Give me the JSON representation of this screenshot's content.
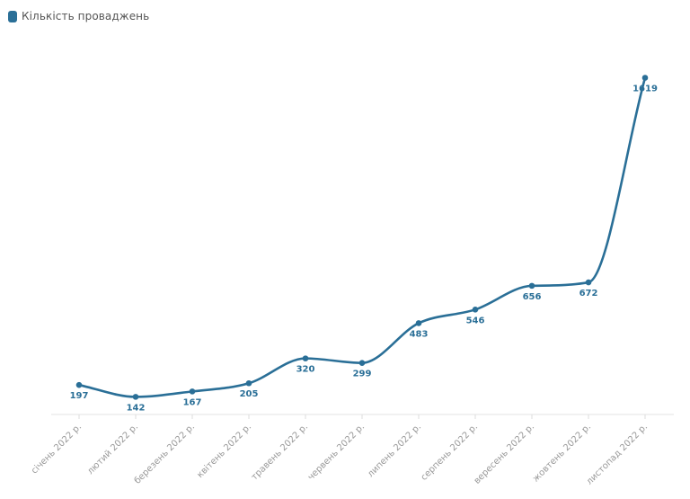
{
  "chart_data": {
    "type": "line",
    "categories": [
      "січень 2022 р.",
      "лютий 2022 р.",
      "березень 2022 р.",
      "квітень 2022 р.",
      "травень 2022 р.",
      "червень 2022 р.",
      "липень 2022 р.",
      "серпень 2022 р.",
      "вересень 2022 р.",
      "жовтень 2022 р.",
      "листопад 2022 р."
    ],
    "series": [
      {
        "name": "Кількість проваджень",
        "values": [
          197,
          142,
          167,
          205,
          320,
          299,
          483,
          546,
          656,
          672,
          1619
        ],
        "color": "#2a6f97"
      }
    ],
    "ylim": [
      0,
      1619
    ],
    "grid": false,
    "legend_position": "top-left",
    "smooth": true,
    "data_labels": true
  }
}
